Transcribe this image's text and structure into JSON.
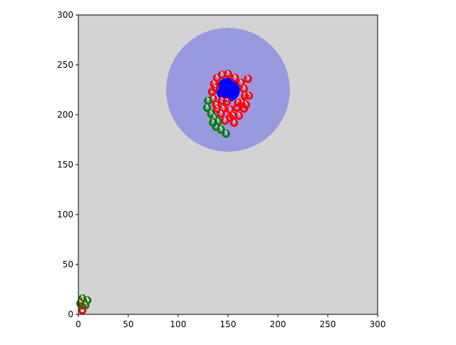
{
  "chart_data": {
    "type": "scatter",
    "title": "",
    "xlabel": "",
    "ylabel": "",
    "xlim": [
      0,
      300
    ],
    "ylim": [
      0,
      300
    ],
    "xticks": [
      "0",
      "50",
      "100",
      "150",
      "200",
      "250",
      "300"
    ],
    "yticks": [
      "0",
      "50",
      "100",
      "150",
      "200",
      "250",
      "300"
    ],
    "grid": false,
    "background_color": "#d3d3d3",
    "zones": [
      {
        "x": 150,
        "y": 225,
        "r": 62,
        "color": "#9999e0"
      },
      {
        "x": 150,
        "y": 225,
        "r": 12,
        "color": "#0000ff"
      }
    ],
    "series": [
      {
        "color": "#ff0000",
        "points": [
          [
            144,
            240
          ],
          [
            150,
            241
          ],
          [
            157,
            237
          ],
          [
            163,
            232
          ],
          [
            166,
            226
          ],
          [
            167,
            219
          ],
          [
            164,
            212
          ],
          [
            159,
            207
          ],
          [
            152,
            205
          ],
          [
            145,
            206
          ],
          [
            138,
            210
          ],
          [
            135,
            216
          ],
          [
            134,
            223
          ],
          [
            136,
            231
          ],
          [
            139,
            237
          ],
          [
            170,
            236
          ],
          [
            171,
            219
          ],
          [
            166,
            206
          ],
          [
            161,
            199
          ],
          [
            156,
            192
          ],
          [
            152,
            197
          ],
          [
            147,
            194
          ],
          [
            143,
            201
          ],
          [
            139,
            206
          ],
          [
            144,
            214
          ],
          [
            149,
            213
          ],
          [
            155,
            199
          ],
          [
            160,
            212
          ],
          [
            168,
            210
          ],
          [
            137,
            227
          ],
          [
            4,
            4
          ],
          [
            4,
            9
          ],
          [
            5,
            13
          ]
        ]
      },
      {
        "color": "#008000",
        "points": [
          [
            130,
            214
          ],
          [
            129,
            207
          ],
          [
            133,
            201
          ],
          [
            136,
            197
          ],
          [
            140,
            193
          ],
          [
            138,
            188
          ],
          [
            143,
            185
          ],
          [
            148,
            181
          ],
          [
            135,
            192
          ],
          [
            4,
            16
          ],
          [
            9,
            14
          ],
          [
            7,
            9
          ],
          [
            2,
            11
          ]
        ]
      }
    ]
  }
}
